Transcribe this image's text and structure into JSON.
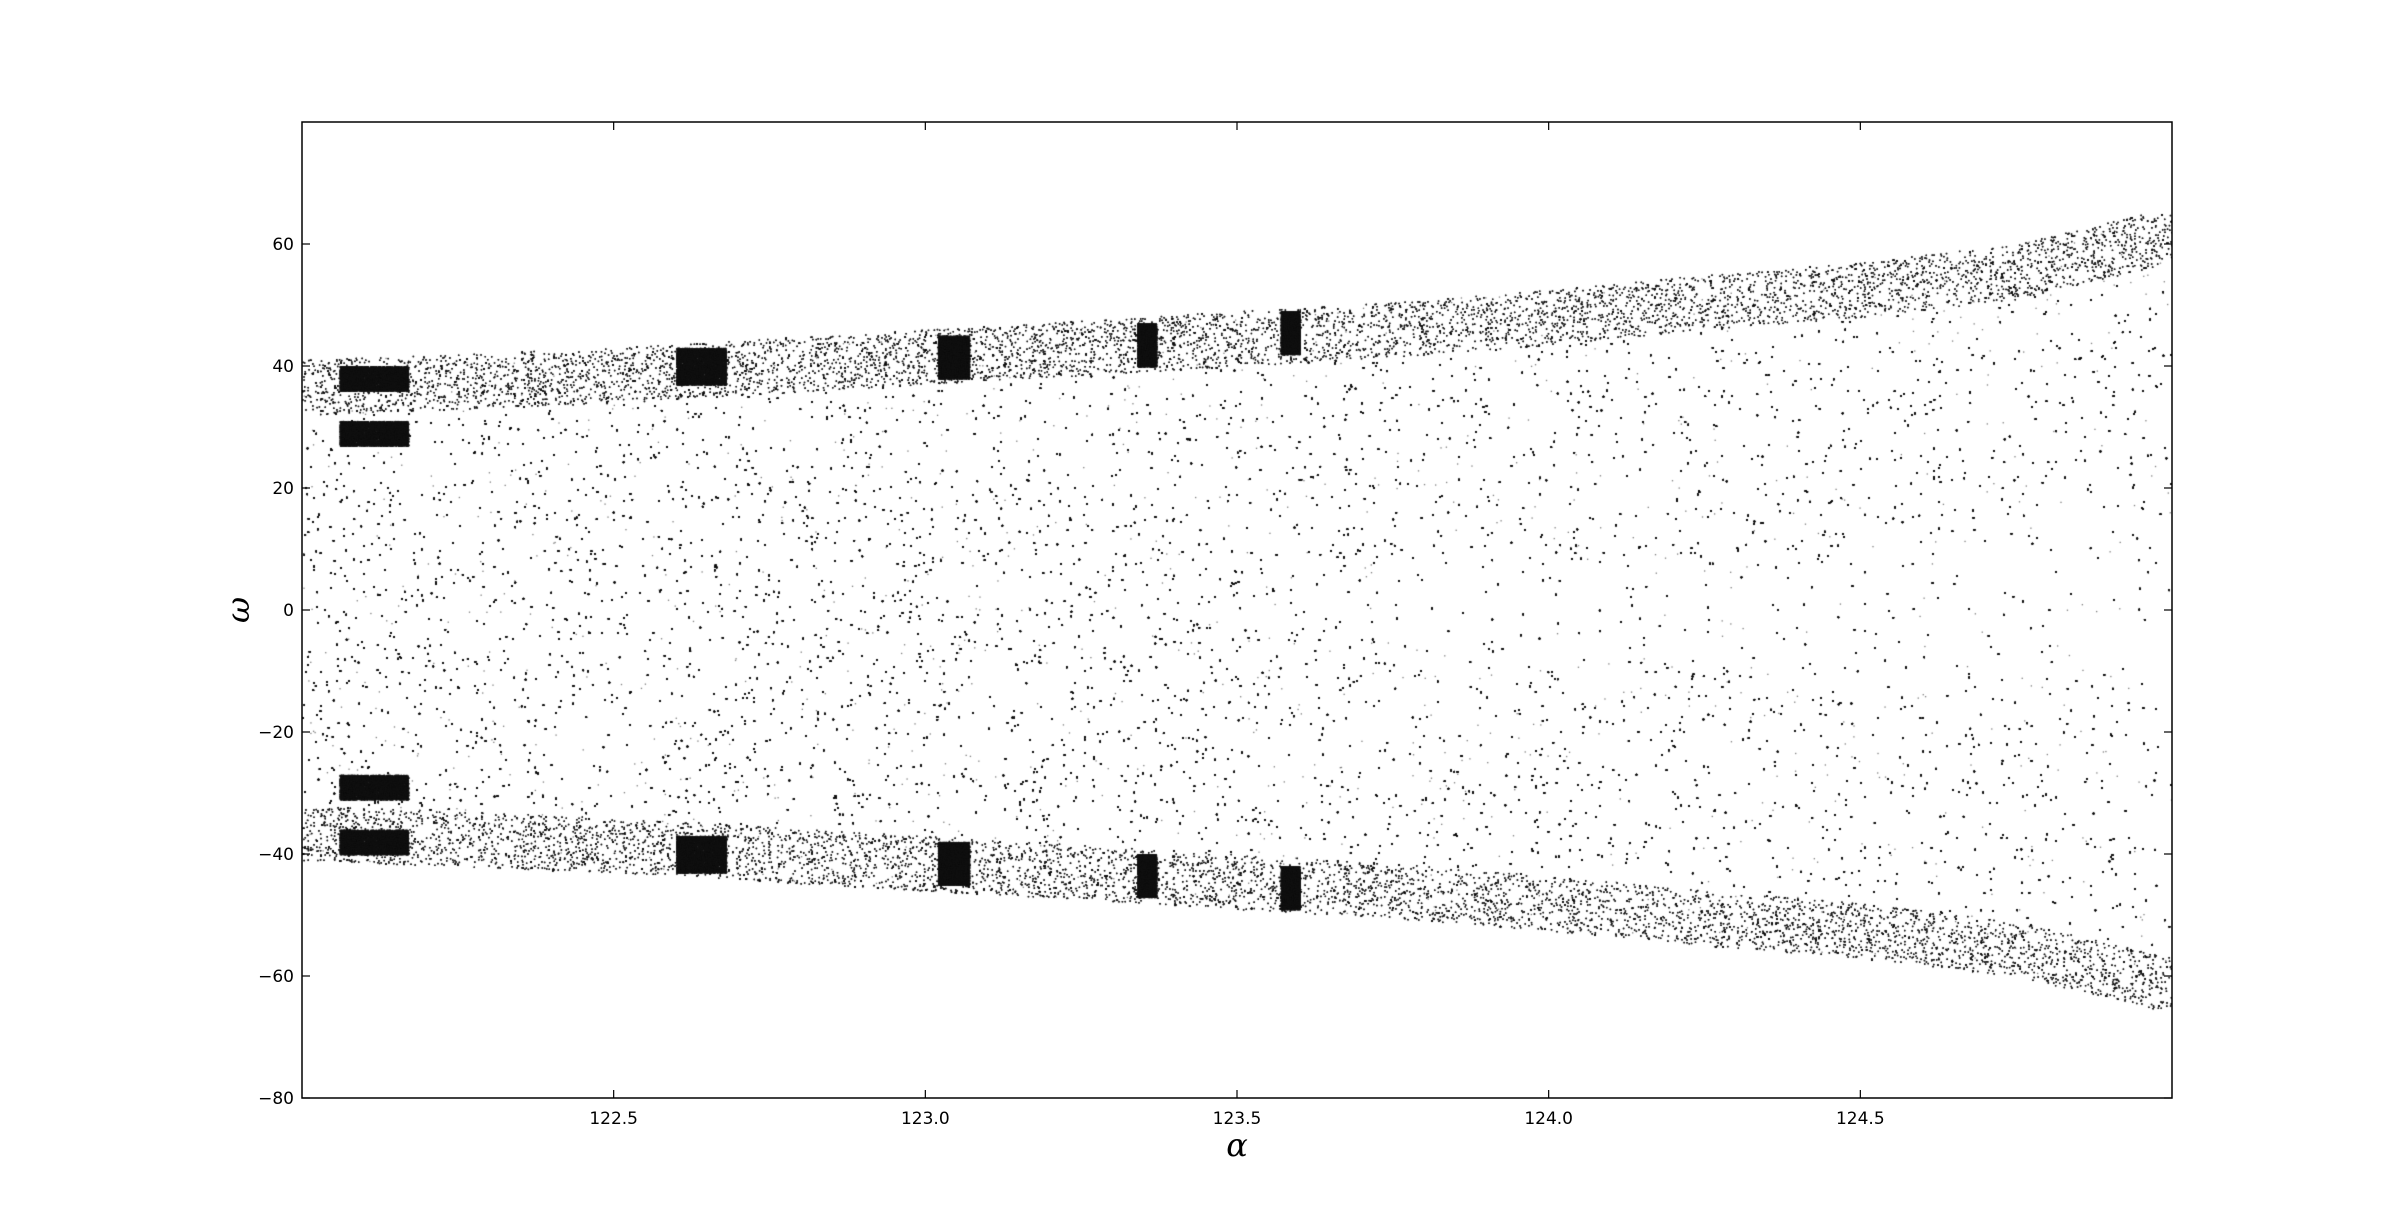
{
  "chart_data": {
    "type": "scatter",
    "title": "",
    "xlabel": "α",
    "ylabel": "ω",
    "xlim": [
      122.0,
      125.0
    ],
    "ylim": [
      -80,
      80
    ],
    "xticks": [
      {
        "value": 122.5,
        "label": "122.5"
      },
      {
        "value": 123.0,
        "label": "123.0"
      },
      {
        "value": 123.5,
        "label": "123.5"
      },
      {
        "value": 124.0,
        "label": "124.0"
      },
      {
        "value": 124.5,
        "label": "124.5"
      }
    ],
    "yticks": [
      {
        "value": 60,
        "label": "60"
      },
      {
        "value": 40,
        "label": "40"
      },
      {
        "value": 20,
        "label": "20"
      },
      {
        "value": 0,
        "label": "0"
      },
      {
        "value": -20,
        "label": "−20"
      },
      {
        "value": -40,
        "label": "−40"
      },
      {
        "value": -60,
        "label": "−60"
      },
      {
        "value": -80,
        "label": "−80"
      }
    ],
    "grid": false,
    "marker_color": "#111111",
    "envelope": {
      "x": [
        122.0,
        122.25,
        122.5,
        122.75,
        123.0,
        123.25,
        123.5,
        123.75,
        124.0,
        124.25,
        124.5,
        124.75,
        125.0
      ],
      "upper": [
        41,
        42,
        43,
        44.5,
        46,
        47.5,
        49,
        50.5,
        52.5,
        55,
        57,
        60,
        66
      ],
      "lower": [
        -41,
        -42,
        -43,
        -44.5,
        -46,
        -47.5,
        -49,
        -50.5,
        -52.5,
        -55,
        -57,
        -60,
        -66
      ]
    },
    "windows": [
      {
        "x": [
          122.06,
          122.17
        ],
        "bands": [
          [
            27,
            31
          ],
          [
            36,
            40
          ],
          [
            -31,
            -27
          ],
          [
            -40,
            -36
          ]
        ]
      },
      {
        "x": [
          122.6,
          122.68
        ],
        "bands": [
          [
            37,
            43
          ],
          [
            -43,
            -37
          ]
        ]
      },
      {
        "x": [
          123.02,
          123.07
        ],
        "bands": [
          [
            38,
            45
          ],
          [
            -45,
            -38
          ]
        ]
      },
      {
        "x": [
          123.34,
          123.37
        ],
        "bands": [
          [
            40,
            47
          ],
          [
            -47,
            -40
          ]
        ]
      },
      {
        "x": [
          123.57,
          123.6
        ],
        "bands": [
          [
            42,
            49
          ],
          [
            -49,
            -42
          ]
        ]
      }
    ],
    "light_strips": [
      122.17,
      122.65,
      123.04,
      123.35,
      123.58,
      123.77,
      123.93,
      124.18,
      124.38
    ]
  }
}
